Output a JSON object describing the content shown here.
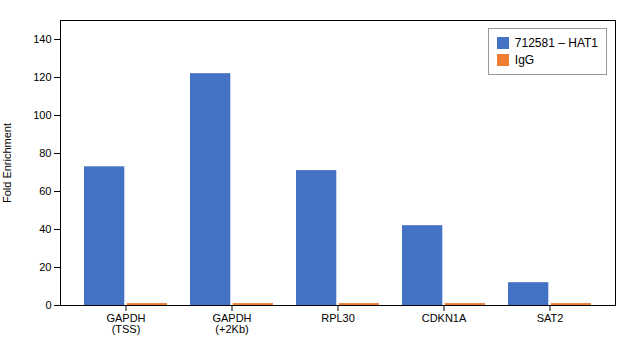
{
  "chart_data": {
    "type": "bar",
    "categories": [
      "GAPDH\n(TSS)",
      "GAPDH\n(+2Kb)",
      "RPL30",
      "CDKN1A",
      "SAT2"
    ],
    "series": [
      {
        "name": "712581 – HAT1",
        "color": "#4472C4",
        "values": [
          73,
          122,
          71,
          42,
          12
        ]
      },
      {
        "name": "IgG",
        "color": "#ED7D31",
        "values": [
          1,
          1,
          1,
          1,
          1
        ]
      }
    ],
    "ylabel": "Fold Enrichment",
    "ylim": [
      0,
      150
    ],
    "yticks": [
      0,
      20,
      40,
      60,
      80,
      100,
      120,
      140
    ],
    "grid": false,
    "legend": "upper right"
  }
}
